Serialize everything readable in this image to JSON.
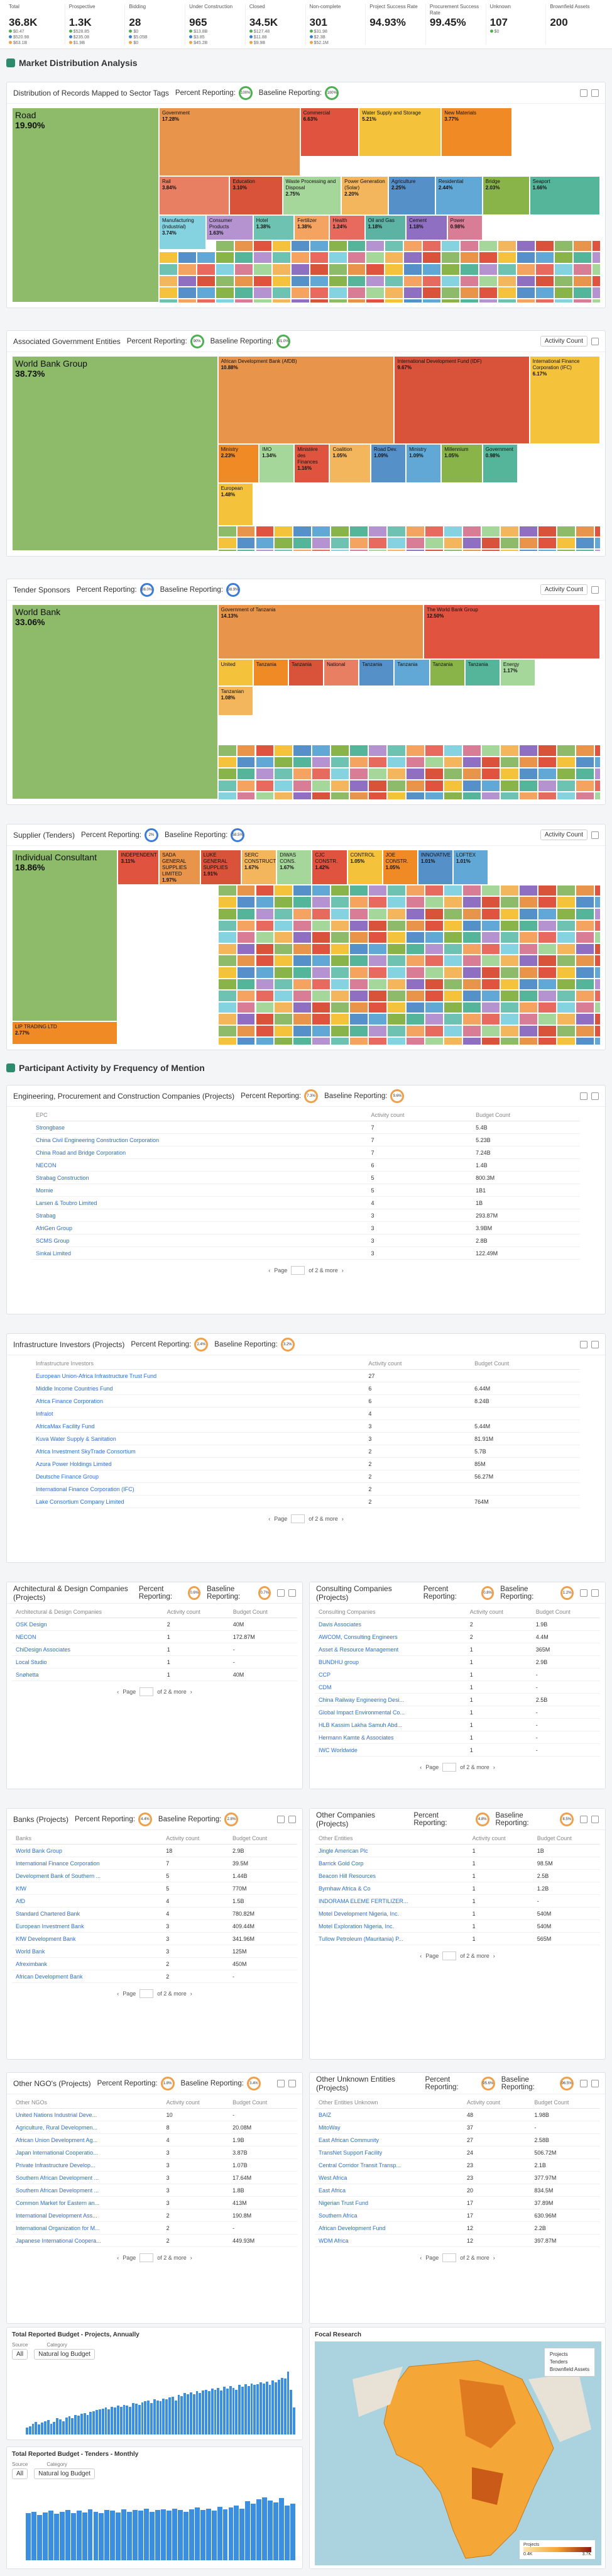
{
  "stats": [
    {
      "label": "Total",
      "value": "36.8K",
      "subs": [
        "$0.47",
        "$520.98",
        "$63.1B"
      ]
    },
    {
      "label": "Prospective",
      "value": "1.3K",
      "subs": [
        "$528.85",
        "$235.08",
        "$1.9B"
      ]
    },
    {
      "label": "Bidding",
      "value": "28",
      "subs": [
        "$0",
        "$5.05B",
        "$0"
      ]
    },
    {
      "label": "Under Construction",
      "value": "965",
      "subs": [
        "$13.8B",
        "$3.85",
        "$45.2B"
      ]
    },
    {
      "label": "Closed",
      "value": "34.5K",
      "subs": [
        "$127.48",
        "$11.88",
        "$9.9B"
      ]
    },
    {
      "label": "Non-complete",
      "value": "301",
      "subs": [
        "$31.98",
        "$2.3B",
        "$52.1M"
      ]
    },
    {
      "label": "Project Success Rate",
      "value": "94.93%",
      "subs": []
    },
    {
      "label": "Procurement Success Rate",
      "value": "99.45%",
      "subs": []
    },
    {
      "label": "Unknown",
      "value": "107",
      "subs": [
        "$0"
      ]
    },
    {
      "label": "Brownfield Assets",
      "value": "200",
      "subs": []
    }
  ],
  "sections": {
    "market": "Market Distribution Analysis",
    "participants": "Participant Activity by Frequency of Mention"
  },
  "labels": {
    "percent_reporting": "Percent Reporting:",
    "baseline_reporting": "Baseline Reporting:",
    "activity_count": "Activity Count",
    "activity_count_col": "Activity count",
    "budget_count_col": "Budget Count",
    "page": "Page",
    "of_more": "of 2 & more"
  },
  "charts": {
    "sector": {
      "title": "Distribution of Records Mapped to Sector Tags",
      "pct": "100%",
      "base": "100%",
      "cells": [
        {
          "name": "Road",
          "pct": "19.90%",
          "color": "#8dbb6a"
        },
        {
          "name": "Government",
          "pct": "17.28%",
          "color": "#e8944a"
        },
        {
          "name": "Commercial",
          "pct": "6.63%",
          "color": "#e0533f"
        },
        {
          "name": "Water Supply and Storage",
          "pct": "5.21%",
          "color": "#f5c33b"
        },
        {
          "name": "New Materials",
          "pct": "3.77%",
          "color": "#f08a24"
        },
        {
          "name": "Rail",
          "pct": "3.84%",
          "color": "#e87e62"
        },
        {
          "name": "Education",
          "pct": "3.10%",
          "color": "#d9533a"
        },
        {
          "name": "Waste Processing and Disposal",
          "pct": "2.75%",
          "color": "#a6d79a"
        },
        {
          "name": "Power Generation (Solar)",
          "pct": "2.20%",
          "color": "#f4b65c"
        },
        {
          "name": "Agriculture",
          "pct": "2.25%",
          "color": "#5690c9"
        },
        {
          "name": "Residential",
          "pct": "2.44%",
          "color": "#61a8d6"
        },
        {
          "name": "Bridge",
          "pct": "2.03%",
          "color": "#89b44a"
        },
        {
          "name": "Seaport",
          "pct": "1.66%",
          "color": "#54b59a"
        },
        {
          "name": "Manufacturing (Industrial)",
          "pct": "3.74%",
          "color": "#85d2e0"
        },
        {
          "name": "Consumer Products",
          "pct": "1.63%",
          "color": "#b593d1"
        },
        {
          "name": "Hotel",
          "pct": "1.38%",
          "color": "#6ec2b1"
        },
        {
          "name": "Fertilizer",
          "pct": "1.38%",
          "color": "#f4a460"
        },
        {
          "name": "Health",
          "pct": "1.24%",
          "color": "#e86a5f"
        },
        {
          "name": "Oil and Gas",
          "pct": "1.18%",
          "color": "#5cb3a3"
        },
        {
          "name": "Cement",
          "pct": "1.18%",
          "color": "#8f6fc1"
        },
        {
          "name": "Power",
          "pct": "0.98%",
          "color": "#d97d96"
        }
      ]
    },
    "gov": {
      "title": "Associated Government Entities",
      "pct": "90%",
      "base": "91.0%",
      "cells": [
        {
          "name": "World Bank Group",
          "pct": "38.73%",
          "color": "#8dbb6a"
        },
        {
          "name": "African Development Bank (AfDB)",
          "pct": "10.88%",
          "color": "#e8944a"
        },
        {
          "name": "International Development Fund (IDF)",
          "pct": "9.67%",
          "color": "#d9533a"
        },
        {
          "name": "International Finance Corporation (IFC)",
          "pct": "6.17%",
          "color": "#f5c33b"
        },
        {
          "name": "Ministry",
          "pct": "2.23%",
          "color": "#f08a24"
        },
        {
          "name": "IMO",
          "pct": "1.34%",
          "color": "#a6d79a"
        },
        {
          "name": "Ministère des Finances",
          "pct": "1.16%",
          "color": "#e0533f"
        },
        {
          "name": "Coalition",
          "pct": "1.05%",
          "color": "#f4b65c"
        },
        {
          "name": "Road Dev.",
          "pct": "1.09%",
          "color": "#5690c9"
        },
        {
          "name": "Ministry",
          "pct": "1.09%",
          "color": "#61a8d6"
        },
        {
          "name": "Millennium",
          "pct": "1.05%",
          "color": "#89b44a"
        },
        {
          "name": "Government",
          "pct": "0.98%",
          "color": "#54b59a"
        },
        {
          "name": "European",
          "pct": "1.48%",
          "color": "#f5c33b"
        }
      ]
    },
    "tender": {
      "title": "Tender Sponsors",
      "pct": "98.0%",
      "base": "98.9%",
      "cells": [
        {
          "name": "World Bank",
          "pct": "33.06%",
          "color": "#8dbb6a"
        },
        {
          "name": "Government of Tanzania",
          "pct": "14.13%",
          "color": "#e8944a"
        },
        {
          "name": "The World Bank Group",
          "pct": "12.50%",
          "color": "#e0533f"
        },
        {
          "name": "United",
          "pct": "",
          "color": "#f5c33b"
        },
        {
          "name": "Tanzania",
          "pct": "",
          "color": "#f08a24"
        },
        {
          "name": "Tanzania",
          "pct": "",
          "color": "#d9533a"
        },
        {
          "name": "National",
          "pct": "",
          "color": "#e87e62"
        },
        {
          "name": "Tanzania",
          "pct": "",
          "color": "#5690c9"
        },
        {
          "name": "Tanzania",
          "pct": "",
          "color": "#61a8d6"
        },
        {
          "name": "Tanzania",
          "pct": "",
          "color": "#89b44a"
        },
        {
          "name": "Tanzania",
          "pct": "",
          "color": "#54b59a"
        },
        {
          "name": "Energy",
          "pct": "1.17%",
          "color": "#a6d79a"
        },
        {
          "name": "Tanzanian",
          "pct": "1.08%",
          "color": "#f4b65c"
        }
      ]
    },
    "supplier": {
      "title": "Supplier (Tenders)",
      "pct": "2%",
      "base": "58.5%",
      "cells": [
        {
          "name": "Individual Consultant",
          "pct": "18.86%",
          "color": "#8dbb6a"
        },
        {
          "name": "INDEPENDENT",
          "pct": "3.11%",
          "color": "#e0533f"
        },
        {
          "name": "SADA GENERAL SUPPLIES LIMITED",
          "pct": "1.97%",
          "color": "#e8944a"
        },
        {
          "name": "LUKE GENERAL SUPPLIES",
          "pct": "1.91%",
          "color": "#d9533a"
        },
        {
          "name": "SERC CONSTRUCTION",
          "pct": "1.67%",
          "color": "#f4b65c"
        },
        {
          "name": "DIWAS CONS.",
          "pct": "1.67%",
          "color": "#a6d79a"
        },
        {
          "name": "CJC CONSTR.",
          "pct": "1.42%",
          "color": "#e0533f"
        },
        {
          "name": "CONTROL",
          "pct": "1.05%",
          "color": "#f5c33b"
        },
        {
          "name": "JOE CONSTR.",
          "pct": "1.05%",
          "color": "#f08a24"
        },
        {
          "name": "INNOVATIVE",
          "pct": "1.01%",
          "color": "#5690c9"
        },
        {
          "name": "LOFTEX",
          "pct": "1.01%",
          "color": "#61a8d6"
        },
        {
          "name": "LIP TRADING LTD",
          "pct": "2.77%",
          "color": "#f08a24"
        }
      ]
    }
  },
  "epc": {
    "title": "Engineering, Procurement and Construction Companies (Projects)",
    "pct": "7.3%",
    "base": "9.6%",
    "col": "EPC",
    "rows": [
      [
        "Strongbase",
        "7",
        "5.4B"
      ],
      [
        "China Civil Engineering Construction Corporation",
        "7",
        "5.23B"
      ],
      [
        "China Road and Bridge Corporation",
        "7",
        "7.24B"
      ],
      [
        "NECON",
        "6",
        "1.4B"
      ],
      [
        "Strabag Construction",
        "5",
        "800.3M"
      ],
      [
        "Mornie",
        "5",
        "1B1"
      ],
      [
        "Larsen & Toubro Limited",
        "4",
        "1B"
      ],
      [
        "Strabag",
        "3",
        "293.87M"
      ],
      [
        "AfriGen Group",
        "3",
        "3.9BM"
      ],
      [
        "SCMS Group",
        "3",
        "2.8B"
      ],
      [
        "Sinkai Limited",
        "3",
        "122.49M"
      ]
    ]
  },
  "infra": {
    "title": "Infrastructure Investors (Projects)",
    "pct": "2.4%",
    "base": "3.2%",
    "col": "Infrastructure Investors",
    "rows": [
      [
        "European Union-Africa Infrastructure Trust Fund",
        "27",
        ""
      ],
      [
        "Middle Income Countries Fund",
        "6",
        "6.44M"
      ],
      [
        "Africa Finance Corporation",
        "6",
        "8.24B"
      ],
      [
        "Infralot",
        "4",
        ""
      ],
      [
        "AfricaMax Facility Fund",
        "3",
        "5.44M"
      ],
      [
        "Kuva Water Supply & Sanitation",
        "3",
        "81.91M"
      ],
      [
        "Africa Investment SkyTrade Consortium",
        "2",
        "5.7B"
      ],
      [
        "Azura Power Holdings Limited",
        "2",
        "85M"
      ],
      [
        "Deutsche Finance Group",
        "2",
        "56.27M"
      ],
      [
        "International Finance Corporation (IFC)",
        "2",
        ""
      ],
      [
        "Lake Consortium Company Limited",
        "2",
        "764M"
      ]
    ]
  },
  "arch": {
    "title": "Architectural & Design Companies (Projects)",
    "pct": "0.6%",
    "base": "0.7%",
    "col": "Architectural & Design Companies",
    "rows": [
      [
        "OSK Design",
        "2",
        "40M"
      ],
      [
        "NECON",
        "1",
        "172.87M"
      ],
      [
        "ChiDesign Associates",
        "1",
        "-"
      ],
      [
        "Local Studio",
        "1",
        "-"
      ],
      [
        "Snøhetta",
        "1",
        "40M"
      ]
    ]
  },
  "consult": {
    "title": "Consulting Companies (Projects)",
    "pct": "0.8%",
    "base": "1.2%",
    "col": "Consulting Companies",
    "rows": [
      [
        "Davis Associates",
        "2",
        "1.9B"
      ],
      [
        "AWCOM, Consulting Engineers",
        "2",
        "4.4M"
      ],
      [
        "Asset & Resource Management",
        "1",
        "365M"
      ],
      [
        "BUNDHU group",
        "1",
        "2.9B"
      ],
      [
        "CCP",
        "1",
        "-"
      ],
      [
        "CDM",
        "1",
        "-"
      ],
      [
        "China Railway Engineering Desi...",
        "1",
        "2.5B"
      ],
      [
        "Global Impact Environmental Co...",
        "1",
        "-"
      ],
      [
        "HLB Kassim Lakha Samuh Abd...",
        "1",
        "-"
      ],
      [
        "Hermann Kamte & Associates",
        "1",
        "-"
      ],
      [
        "IWC Worldwide",
        "1",
        "-"
      ]
    ]
  },
  "banks": {
    "title": "Banks (Projects)",
    "pct": "4.4%",
    "base": "2.8%",
    "col": "Banks",
    "rows": [
      [
        "World Bank Group",
        "18",
        "2.9B"
      ],
      [
        "International Finance Corporation",
        "7",
        "39.5M"
      ],
      [
        "Development Bank of Southern ...",
        "5",
        "1.44B"
      ],
      [
        "KfW",
        "5",
        "770M"
      ],
      [
        "AfD",
        "4",
        "1.5B"
      ],
      [
        "Standard Chartered Bank",
        "4",
        "780.82M"
      ],
      [
        "European Investment Bank",
        "3",
        "409.44M"
      ],
      [
        "KfW Development Bank",
        "3",
        "341.96M"
      ],
      [
        "World Bank",
        "3",
        "125M"
      ],
      [
        "Afreximbank",
        "2",
        "450M"
      ],
      [
        "African Development Bank",
        "2",
        "-"
      ]
    ]
  },
  "other_co": {
    "title": "Other Companies (Projects)",
    "pct": "4.8%",
    "base": "8.5%",
    "col": "Other Entities",
    "rows": [
      [
        "Jingle American Plc",
        "1",
        "1B"
      ],
      [
        "Barrick Gold Corp",
        "1",
        "98.5M"
      ],
      [
        "Beacon Hill Resources",
        "1",
        "2.5B"
      ],
      [
        "Byrnhaw Africa & Co",
        "1",
        "1.2B"
      ],
      [
        "INDORAMA ELEME FERTILIZER...",
        "1",
        "-"
      ],
      [
        "Motel Development Nigeria, Inc.",
        "1",
        "540M"
      ],
      [
        "Motel Exploration Nigeria, Inc.",
        "1",
        "540M"
      ],
      [
        "Tullow Petroleum (Mauritania) P...",
        "1",
        "565M"
      ]
    ]
  },
  "ngo": {
    "title": "Other NGO's (Projects)",
    "pct": "1.8%",
    "base": "3.4%",
    "col": "Other NGOs",
    "rows": [
      [
        "United Nations Industrial Deve...",
        "10",
        "-"
      ],
      [
        "Agriculture, Rural Developmen...",
        "8",
        "20.08M"
      ],
      [
        "African Union Development Ag...",
        "4",
        "1.9B"
      ],
      [
        "Japan International Cooperatio...",
        "3",
        "3.87B"
      ],
      [
        "Private Infrastructure Develop...",
        "3",
        "1.07B"
      ],
      [
        "Southern African Development ...",
        "3",
        "17.64M"
      ],
      [
        "Southern African Development ...",
        "3",
        "1.8B"
      ],
      [
        "Common Market for Eastern an...",
        "3",
        "413M"
      ],
      [
        "International Development Ass...",
        "2",
        "190.8M"
      ],
      [
        "International Organization for M...",
        "2",
        "-"
      ],
      [
        "Japanese International Coopera...",
        "2",
        "449.93M"
      ]
    ]
  },
  "other_unknown": {
    "title": "Other Unknown Entities (Projects)",
    "pct": "95.6%",
    "base": "96.5%",
    "col": "Other Entities Unknown",
    "rows": [
      [
        "BAIZ",
        "48",
        "1.98B"
      ],
      [
        "MitoWay",
        "37",
        "-"
      ],
      [
        "East African Community",
        "27",
        "2.58B"
      ],
      [
        "TransNet Support Facility",
        "24",
        "506.72M"
      ],
      [
        "Central Corridor Transit Transp...",
        "23",
        "2.1B"
      ],
      [
        "West Africa",
        "23",
        "377.97M"
      ],
      [
        "East Africa",
        "20",
        "834.5M"
      ],
      [
        "Nigerian Trust Fund",
        "17",
        "37.89M"
      ],
      [
        "Southern Africa",
        "17",
        "630.96M"
      ],
      [
        "African Development Fund",
        "12",
        "2.2B"
      ],
      [
        "WDM Africa",
        "12",
        "397.87M"
      ]
    ]
  },
  "budget_proj": {
    "title": "Total Reported Budget - Projects, Annually",
    "source_label": "Source",
    "cat_label": "Category",
    "source": "All",
    "cat": "Natural log Budget",
    "ylabel": "Natural log Budget",
    "values": [
      8,
      9,
      12,
      14,
      11,
      13,
      15,
      16,
      12,
      14,
      18,
      17,
      15,
      19,
      20,
      18,
      22,
      21,
      23,
      24,
      22,
      25,
      26,
      27,
      28,
      29,
      30,
      28,
      31,
      30,
      32,
      31,
      33,
      32,
      31,
      35,
      34,
      33,
      36,
      37,
      38,
      35,
      39,
      38,
      37,
      40,
      39,
      41,
      42,
      38,
      44,
      43,
      46,
      45,
      47,
      45,
      48,
      46,
      49,
      50,
      48,
      51,
      50,
      52,
      49,
      53,
      51,
      54,
      52,
      50,
      55,
      53,
      56,
      54,
      57,
      55,
      56,
      58,
      57,
      59,
      55,
      60,
      58,
      61,
      63,
      62,
      70,
      50,
      30
    ]
  },
  "budget_tender": {
    "title": "Total Reported Budget - Tenders - Monthly",
    "source_label": "Source",
    "cat_label": "Category",
    "source": "All",
    "cat": "Natural log Budget",
    "ylabel": "Natural log Budget",
    "values": [
      60,
      62,
      58,
      61,
      63,
      59,
      62,
      64,
      60,
      63,
      61,
      65,
      62,
      60,
      64,
      63,
      61,
      65,
      62,
      64,
      63,
      66,
      62,
      64,
      65,
      63,
      66,
      64,
      62,
      65,
      67,
      64,
      66,
      63,
      68,
      65,
      67,
      70,
      66,
      75,
      72,
      78,
      80,
      76,
      74,
      79,
      70,
      72
    ]
  },
  "focal": {
    "title": "Focal Research",
    "legend": [
      "Projects",
      "Tenders",
      "Brownfield Assets"
    ],
    "scale_title": "Projects",
    "scale_min": "0.4K",
    "scale_max": "3.7K"
  }
}
